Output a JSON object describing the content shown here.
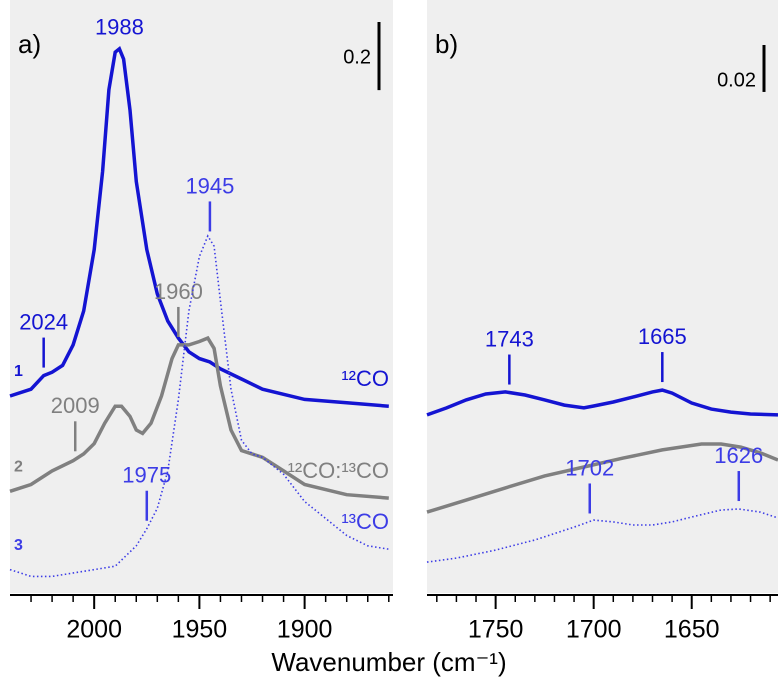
{
  "chart_data": [
    {
      "type": "line",
      "title": "a)",
      "xlabel": "Wavenumber (cm⁻¹)",
      "xlim": [
        2040,
        1858
      ],
      "xticks": [
        2000,
        1950,
        1900
      ],
      "xticks_minor": [
        2030,
        2020,
        2010,
        1990,
        1980,
        1970,
        1960,
        1940,
        1930,
        1920,
        1910,
        1890,
        1880,
        1870,
        1860
      ],
      "ylim": [
        0,
        1.71
      ],
      "scale_bar": 0.2,
      "series": [
        {
          "label": "1",
          "name": "¹²CO",
          "color": "#1414d2",
          "linestyle": "solid",
          "x": [
            2040,
            2030,
            2024,
            2020,
            2015,
            2010,
            2005,
            2000,
            1996,
            1993,
            1990,
            1988,
            1986,
            1983,
            1980,
            1975,
            1970,
            1965,
            1960,
            1955,
            1950,
            1945,
            1940,
            1930,
            1920,
            1900,
            1880,
            1860
          ],
          "values": [
            0.57,
            0.59,
            0.63,
            0.64,
            0.66,
            0.72,
            0.82,
            1.0,
            1.23,
            1.47,
            1.58,
            1.59,
            1.56,
            1.41,
            1.2,
            1.0,
            0.87,
            0.79,
            0.74,
            0.7,
            0.68,
            0.67,
            0.65,
            0.62,
            0.59,
            0.56,
            0.55,
            0.54
          ],
          "peaks": [
            1988,
            2024
          ]
        },
        {
          "label": "2",
          "name": "¹²CO:¹³CO",
          "color": "#808080",
          "linestyle": "solid",
          "x": [
            2040,
            2030,
            2020,
            2010,
            2005,
            2000,
            1995,
            1990,
            1987,
            1983,
            1980,
            1977,
            1973,
            1968,
            1963,
            1960,
            1955,
            1950,
            1946,
            1943,
            1940,
            1935,
            1930,
            1925,
            1920,
            1910,
            1900,
            1880,
            1860
          ],
          "values": [
            0.29,
            0.31,
            0.35,
            0.38,
            0.4,
            0.43,
            0.49,
            0.54,
            0.54,
            0.51,
            0.47,
            0.46,
            0.49,
            0.57,
            0.68,
            0.72,
            0.72,
            0.73,
            0.74,
            0.71,
            0.6,
            0.47,
            0.41,
            0.4,
            0.39,
            0.35,
            0.31,
            0.28,
            0.27
          ],
          "peaks": [
            1960,
            2009
          ]
        },
        {
          "label": "3",
          "name": "¹³CO",
          "color": "#3c3ce6",
          "linestyle": "dotted",
          "x": [
            2040,
            2030,
            2020,
            2000,
            1990,
            1980,
            1975,
            1970,
            1965,
            1960,
            1955,
            1950,
            1946,
            1943,
            1940,
            1935,
            1930,
            1925,
            1920,
            1910,
            1900,
            1890,
            1880,
            1870,
            1860
          ],
          "values": [
            0.06,
            0.04,
            0.04,
            0.06,
            0.07,
            0.13,
            0.18,
            0.24,
            0.35,
            0.56,
            0.82,
            0.98,
            1.04,
            1.01,
            0.85,
            0.59,
            0.44,
            0.4,
            0.39,
            0.34,
            0.26,
            0.21,
            0.16,
            0.13,
            0.12
          ],
          "peaks": [
            1945,
            1975
          ]
        }
      ]
    },
    {
      "type": "line",
      "title": "b)",
      "xlim": [
        1785,
        1606
      ],
      "xticks": [
        1750,
        1700,
        1650
      ],
      "xticks_minor": [
        1780,
        1770,
        1760,
        1740,
        1730,
        1720,
        1710,
        1690,
        1680,
        1670,
        1660,
        1640,
        1630,
        1620,
        1610
      ],
      "ylim": [
        0,
        0.248
      ],
      "scale_bar": 0.02,
      "series": [
        {
          "color": "#1414d2",
          "linestyle": "solid",
          "x": [
            1785,
            1775,
            1765,
            1755,
            1745,
            1735,
            1725,
            1715,
            1705,
            1700,
            1690,
            1680,
            1670,
            1665,
            1660,
            1650,
            1640,
            1630,
            1620,
            1606
          ],
          "values": [
            0.0746,
            0.0776,
            0.081,
            0.0835,
            0.0844,
            0.0831,
            0.081,
            0.0788,
            0.0776,
            0.0784,
            0.0801,
            0.0822,
            0.0844,
            0.0852,
            0.0839,
            0.0797,
            0.0771,
            0.0758,
            0.075,
            0.0746
          ],
          "peaks": [
            1743,
            1665
          ]
        },
        {
          "color": "#808080",
          "linestyle": "solid",
          "x": [
            1785,
            1765,
            1745,
            1725,
            1705,
            1685,
            1665,
            1645,
            1635,
            1625,
            1615,
            1606
          ],
          "values": [
            0.0332,
            0.0383,
            0.0435,
            0.0486,
            0.0524,
            0.0562,
            0.0597,
            0.0622,
            0.0622,
            0.0609,
            0.0584,
            0.0554
          ]
        },
        {
          "color": "#3c3ce6",
          "linestyle": "dotted",
          "x": [
            1785,
            1770,
            1750,
            1730,
            1710,
            1700,
            1690,
            1680,
            1670,
            1660,
            1650,
            1635,
            1626,
            1615,
            1606
          ],
          "values": [
            0.0119,
            0.0136,
            0.017,
            0.0213,
            0.0268,
            0.0298,
            0.029,
            0.0277,
            0.0277,
            0.029,
            0.0311,
            0.0341,
            0.0345,
            0.0332,
            0.0307
          ],
          "peaks": [
            1702,
            1626
          ]
        }
      ]
    }
  ]
}
